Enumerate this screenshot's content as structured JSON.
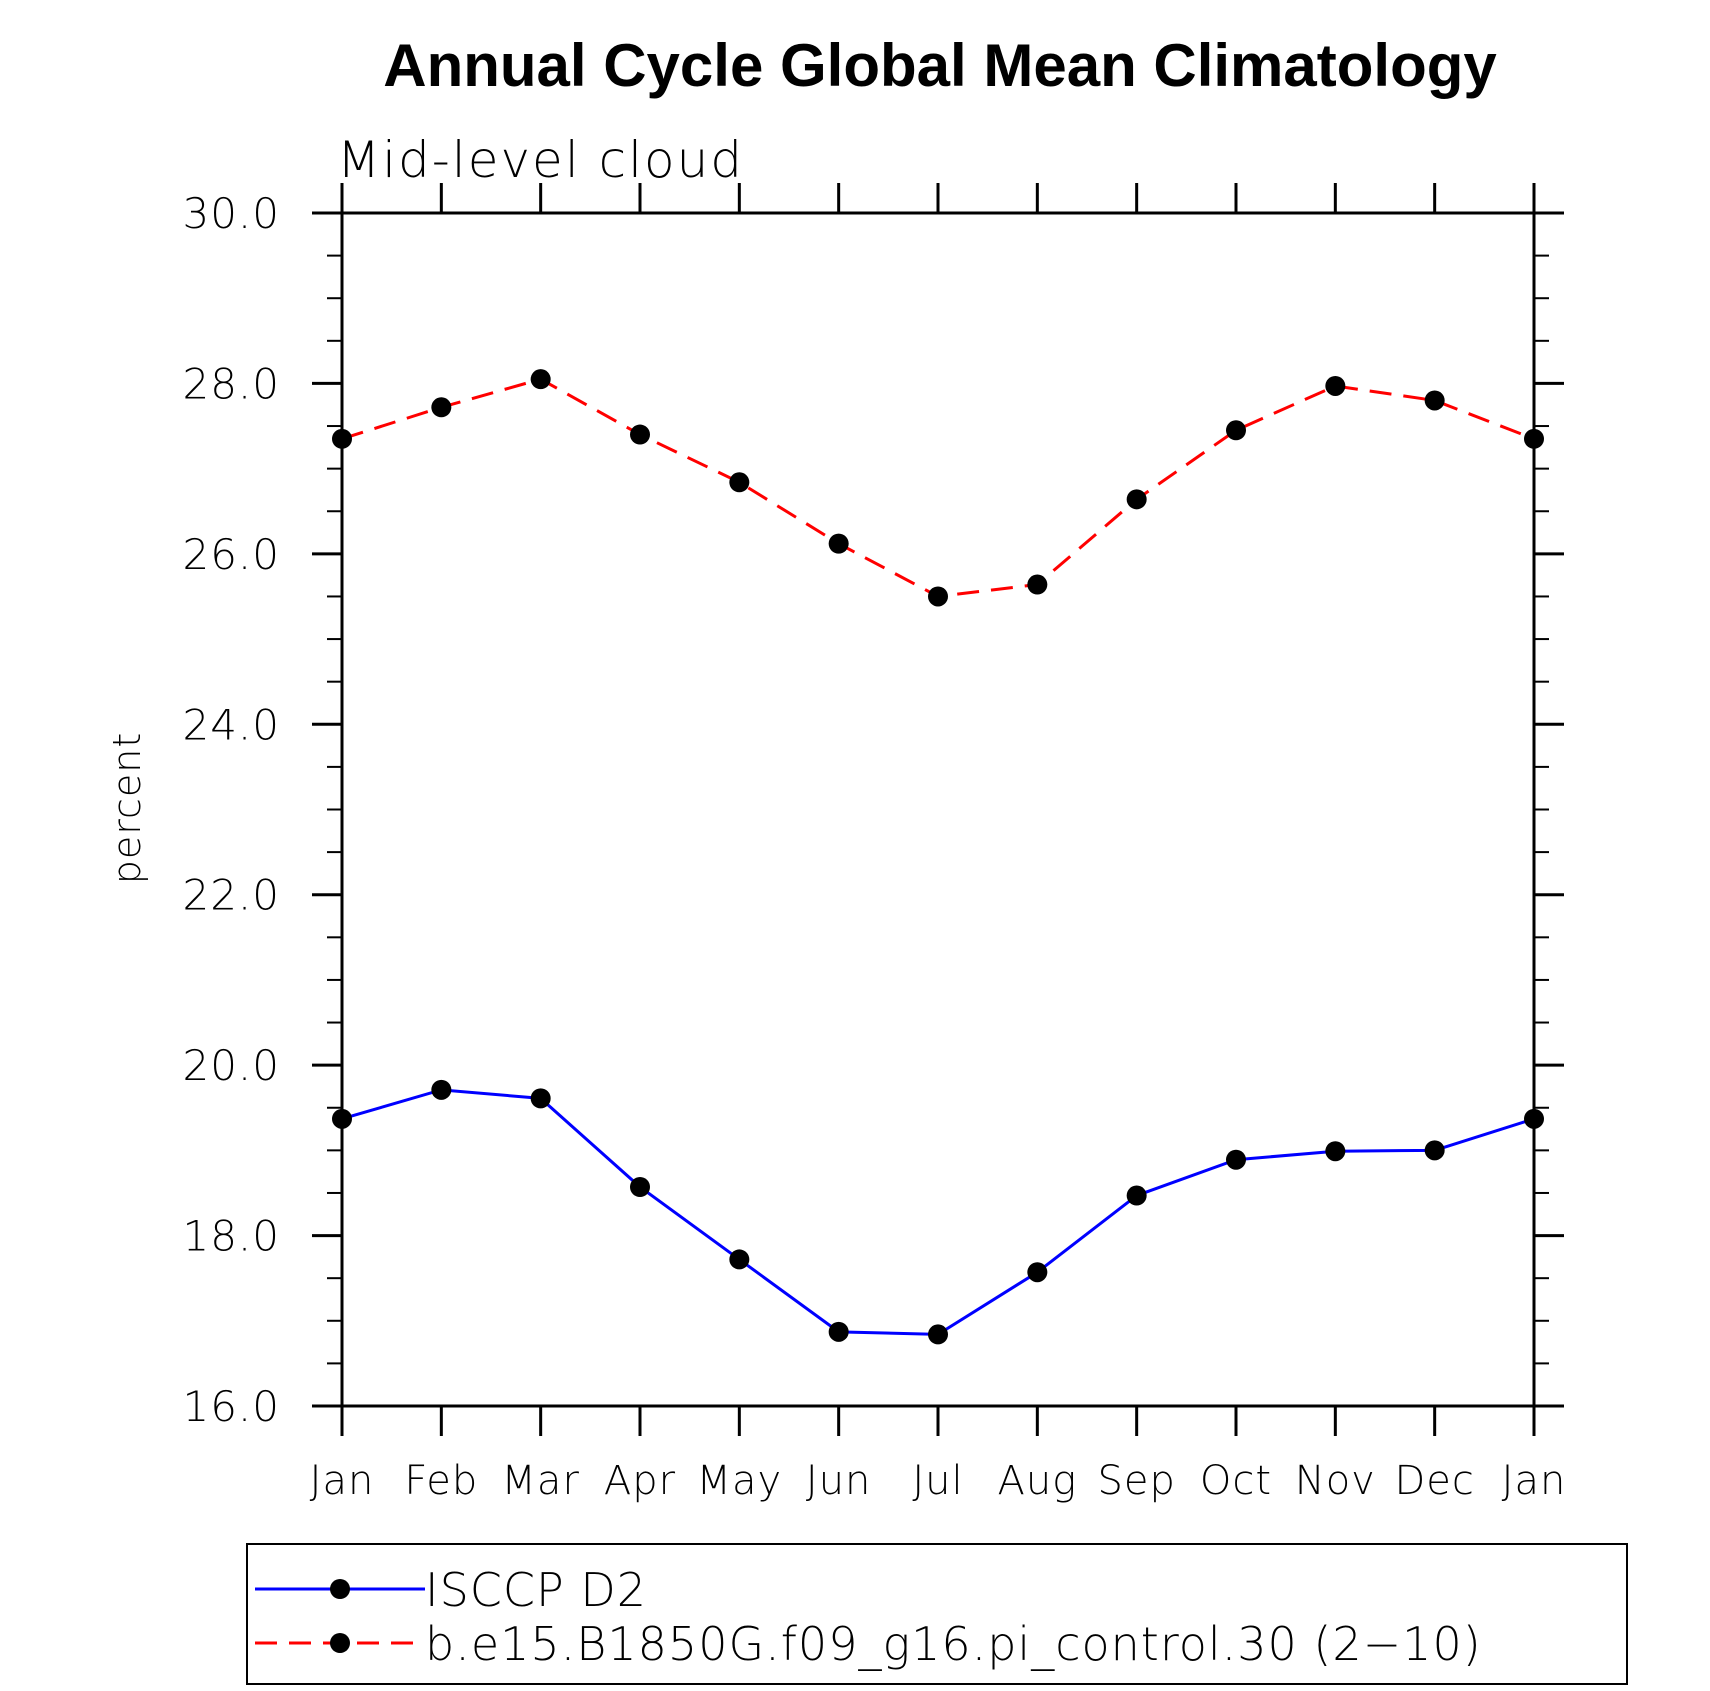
{
  "chart_data": {
    "type": "line",
    "title": "Annual Cycle Global Mean Climatology",
    "subtitle": "Mid-level cloud",
    "ylabel": "percent",
    "xlabel": "",
    "categories": [
      "Jan",
      "Feb",
      "Mar",
      "Apr",
      "May",
      "Jun",
      "Jul",
      "Aug",
      "Sep",
      "Oct",
      "Nov",
      "Dec",
      "Jan"
    ],
    "ylim": [
      16.0,
      30.0
    ],
    "yticks": [
      "16.0",
      "18.0",
      "20.0",
      "22.0",
      "24.0",
      "26.0",
      "28.0",
      "30.0"
    ],
    "grid": false,
    "legend_position": "bottom",
    "series": [
      {
        "name": "ISCCP D2",
        "color": "#0000ff",
        "dash": "solid",
        "marker": "filled-circle",
        "values": [
          19.37,
          19.71,
          19.61,
          18.57,
          17.72,
          16.87,
          16.84,
          17.57,
          18.47,
          18.89,
          18.99,
          19.0,
          19.37
        ]
      },
      {
        "name": "b.e15.B1850G.f09_g16.pi_control.30 (2−10)",
        "color": "#ff0000",
        "dash": "dashed",
        "marker": "filled-circle",
        "values": [
          27.35,
          27.72,
          28.05,
          27.4,
          26.84,
          26.12,
          25.5,
          25.64,
          26.64,
          27.45,
          27.97,
          27.8,
          27.35
        ]
      }
    ]
  }
}
